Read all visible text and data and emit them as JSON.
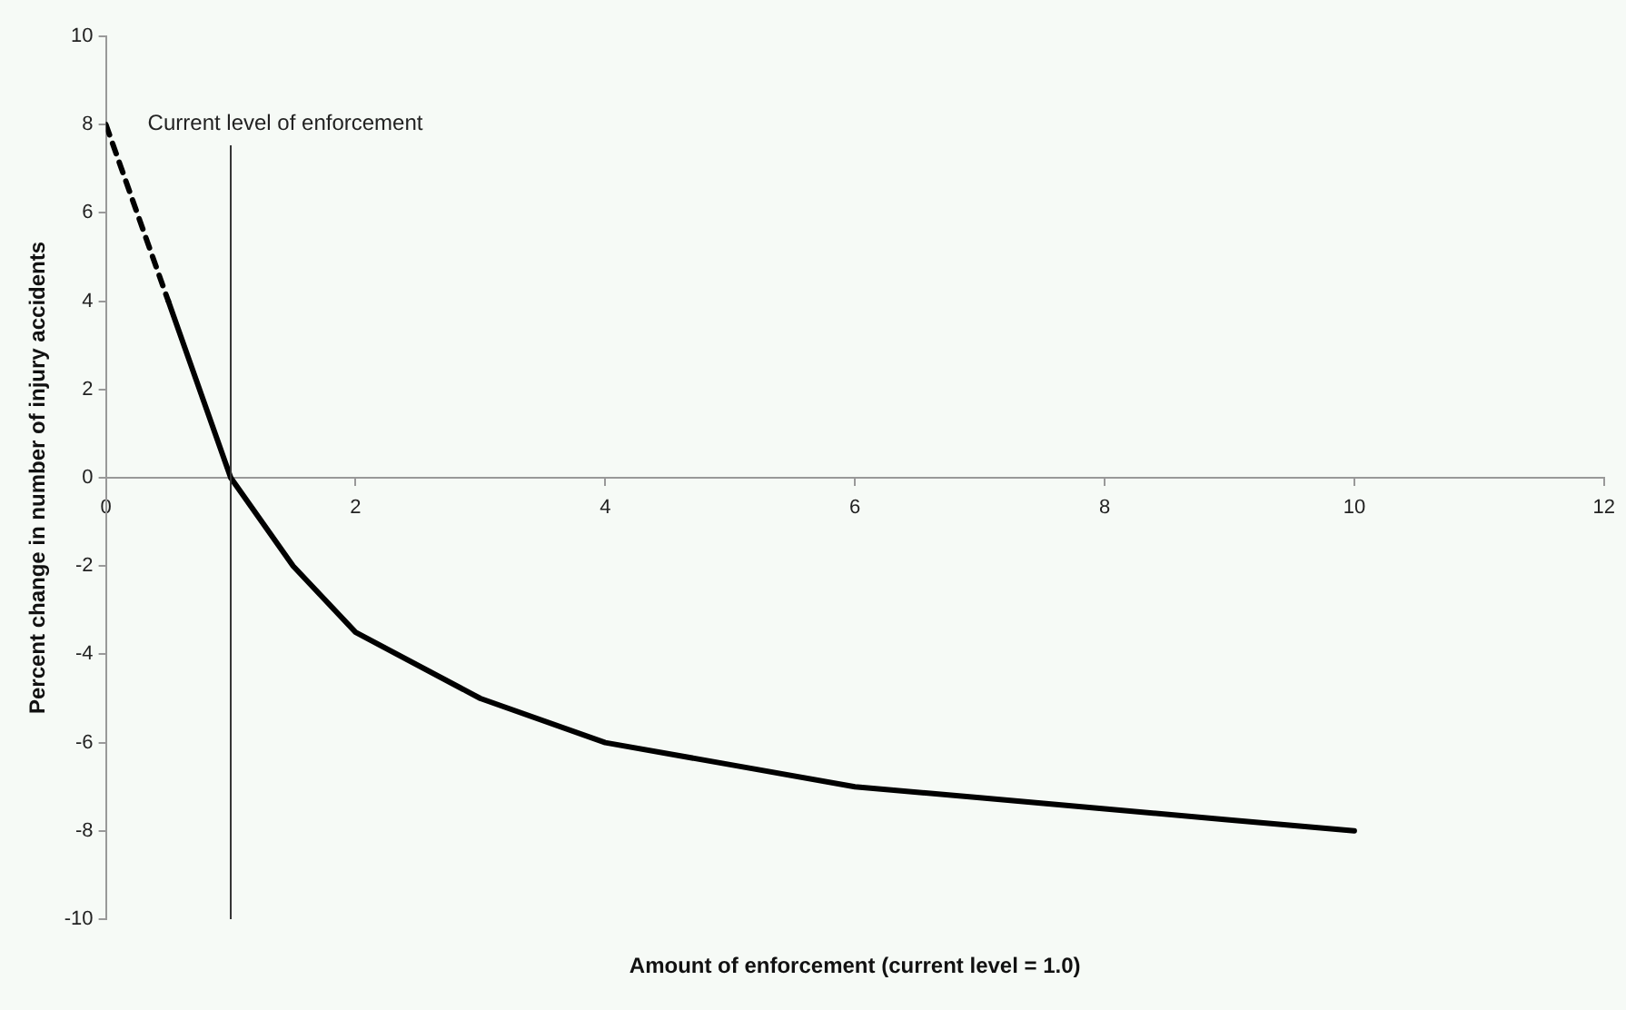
{
  "chart_data": {
    "type": "line",
    "xlabel": "Amount of enforcement (current level = 1.0)",
    "ylabel": "Percent change in number of injury accidents",
    "xlim": [
      0,
      12
    ],
    "xticks": [
      0,
      2,
      4,
      6,
      8,
      10,
      12
    ],
    "ylim": [
      -10,
      10
    ],
    "yticks": [
      -10,
      -8,
      -6,
      -4,
      -2,
      0,
      2,
      4,
      6,
      8,
      10
    ],
    "grid": false,
    "legend": false,
    "marker": "none",
    "series": [
      {
        "color": "#000000",
        "line_style": "dashed",
        "x": [
          0,
          0.5
        ],
        "values": [
          8,
          4
        ]
      },
      {
        "color": "#000000",
        "line_style": "solid",
        "x": [
          0.5,
          1,
          1.5,
          2,
          3,
          4,
          5,
          6,
          7,
          8,
          9,
          10
        ],
        "values": [
          4,
          0,
          -2,
          -3.5,
          -5,
          -6,
          -6.5,
          -7,
          -7.25,
          -7.5,
          -7.75,
          -8
        ]
      }
    ],
    "ref_lines": [
      {
        "axis": "x",
        "value": 1,
        "label": "Current level of enforcement",
        "color": "#333333",
        "line_style": "solid"
      }
    ]
  }
}
